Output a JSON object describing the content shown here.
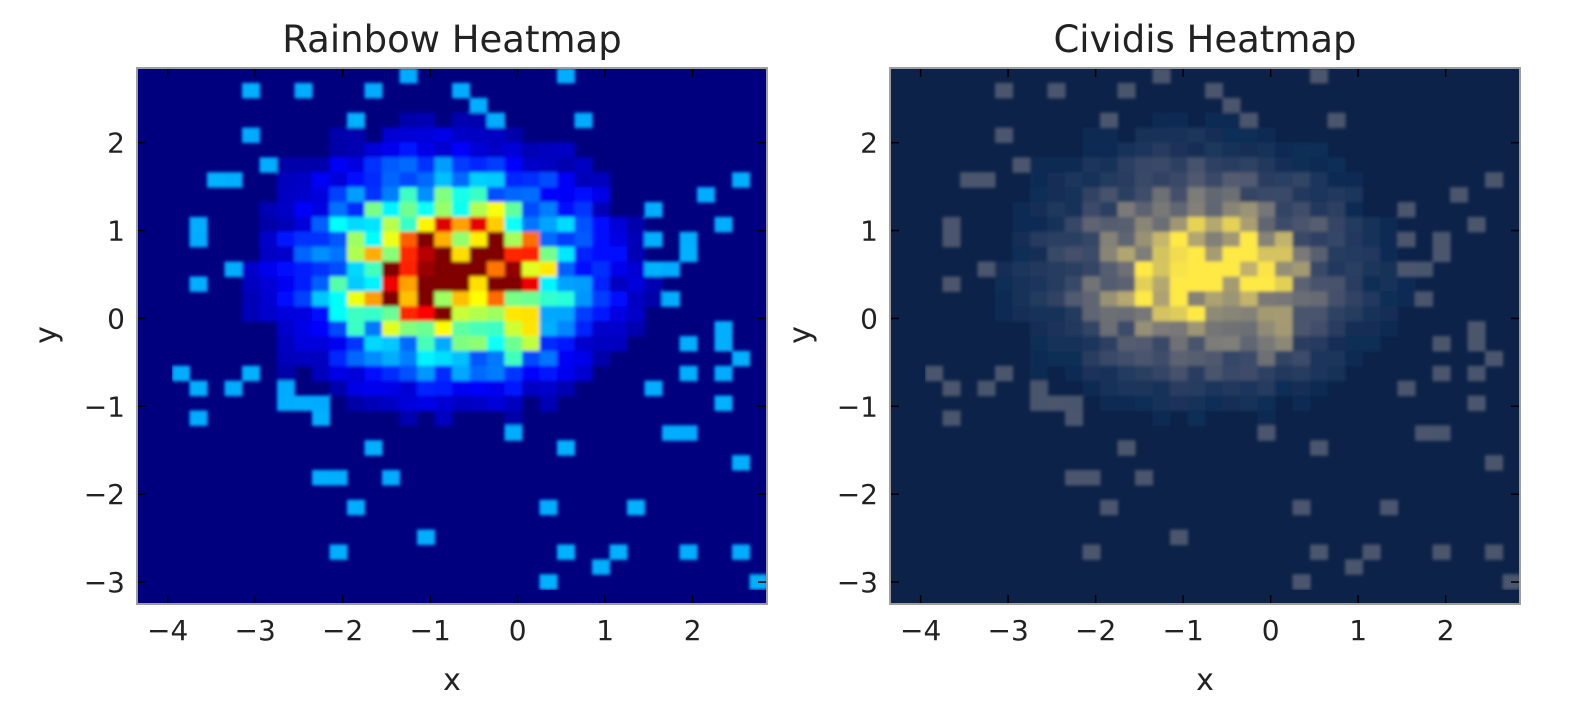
{
  "chart_data": [
    {
      "type": "heatmap",
      "title": "Rainbow Heatmap",
      "xlabel": "x",
      "ylabel": "y",
      "xlim": [
        -4.35,
        2.85
      ],
      "ylim": [
        -3.25,
        2.85
      ],
      "colormap": "jet",
      "background_color": "#00007f",
      "xticks": [
        {
          "value": -4,
          "label": "−4"
        },
        {
          "value": -3,
          "label": "−3"
        },
        {
          "value": -2,
          "label": "−2"
        },
        {
          "value": -1,
          "label": "−1"
        },
        {
          "value": 0,
          "label": "0"
        },
        {
          "value": 1,
          "label": "1"
        },
        {
          "value": 2,
          "label": "2"
        }
      ],
      "yticks": [
        {
          "value": -3,
          "label": "−3"
        },
        {
          "value": -2,
          "label": "−2"
        },
        {
          "value": -1,
          "label": "−1"
        },
        {
          "value": 0,
          "label": "0"
        },
        {
          "value": 1,
          "label": "1"
        },
        {
          "value": 2,
          "label": "2"
        }
      ],
      "intensity_peaks": [
        {
          "x": -0.8,
          "y": 0.55,
          "sx": 0.95,
          "sy": 0.7,
          "amplitude": 0.85
        },
        {
          "x": -1.2,
          "y": 0.3,
          "sx": 0.3,
          "sy": 0.3,
          "amplitude": 0.25
        },
        {
          "x": -0.4,
          "y": 0.75,
          "sx": 0.2,
          "sy": 0.2,
          "amplitude": 0.2
        },
        {
          "x": 0.05,
          "y": 0.35,
          "sx": 0.25,
          "sy": 0.25,
          "amplitude": 0.18
        },
        {
          "x": 0.0,
          "y": 0.75,
          "sx": 0.2,
          "sy": 0.2,
          "amplitude": 0.2
        },
        {
          "x": 0.1,
          "y": -0.3,
          "sx": 0.2,
          "sy": 0.2,
          "amplitude": 0.15
        }
      ]
    },
    {
      "type": "heatmap",
      "title": "Cividis Heatmap",
      "xlabel": "x",
      "ylabel": "y",
      "xlim": [
        -4.35,
        2.85
      ],
      "ylim": [
        -3.25,
        2.85
      ],
      "colormap": "cividis",
      "background_color": "#0c2248",
      "xticks": [
        {
          "value": -4,
          "label": "−4"
        },
        {
          "value": -3,
          "label": "−3"
        },
        {
          "value": -2,
          "label": "−2"
        },
        {
          "value": -1,
          "label": "−1"
        },
        {
          "value": 0,
          "label": "0"
        },
        {
          "value": 1,
          "label": "1"
        },
        {
          "value": 2,
          "label": "2"
        }
      ],
      "yticks": [
        {
          "value": -3,
          "label": "−3"
        },
        {
          "value": -2,
          "label": "−2"
        },
        {
          "value": -1,
          "label": "−1"
        },
        {
          "value": 0,
          "label": "0"
        },
        {
          "value": 1,
          "label": "1"
        },
        {
          "value": 2,
          "label": "2"
        }
      ],
      "intensity_peaks": [
        {
          "x": -0.8,
          "y": 0.55,
          "sx": 0.95,
          "sy": 0.7,
          "amplitude": 0.85
        },
        {
          "x": -1.2,
          "y": 0.3,
          "sx": 0.3,
          "sy": 0.3,
          "amplitude": 0.25
        },
        {
          "x": -0.4,
          "y": 0.75,
          "sx": 0.2,
          "sy": 0.2,
          "amplitude": 0.2
        },
        {
          "x": 0.05,
          "y": 0.35,
          "sx": 0.25,
          "sy": 0.25,
          "amplitude": 0.18
        },
        {
          "x": 0.0,
          "y": 0.75,
          "sx": 0.2,
          "sy": 0.2,
          "amplitude": 0.2
        },
        {
          "x": 0.1,
          "y": -0.3,
          "sx": 0.2,
          "sy": 0.2,
          "amplitude": 0.15
        }
      ]
    }
  ]
}
